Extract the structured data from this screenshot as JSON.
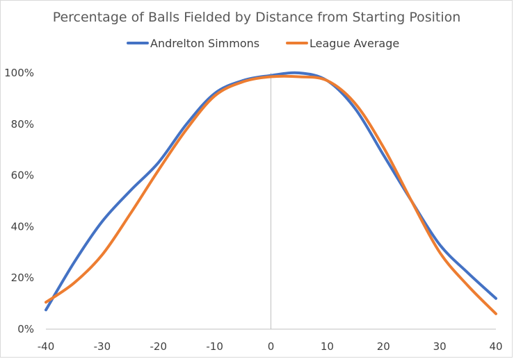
{
  "chart_data": {
    "type": "line",
    "title": "Percentage of Balls Fielded by Distance from Starting Position",
    "xlabel": "",
    "ylabel": "",
    "xlim": [
      -40,
      40
    ],
    "ylim": [
      0,
      100
    ],
    "x_ticks": [
      -40,
      -30,
      -20,
      -10,
      0,
      10,
      20,
      30,
      40
    ],
    "y_ticks": [
      0,
      20,
      40,
      60,
      80,
      100
    ],
    "y_tick_labels": [
      "0%",
      "20%",
      "40%",
      "60%",
      "80%",
      "100%"
    ],
    "legend_position": "top",
    "grid": false,
    "series": [
      {
        "name": "Andrelton Simmons",
        "color": "#4472C4",
        "x": [
          -40,
          -35,
          -30,
          -25,
          -20,
          -15,
          -10,
          -5,
          0,
          5,
          10,
          15,
          20,
          25,
          30,
          35,
          40
        ],
        "values": [
          7.5,
          26,
          42,
          54,
          65,
          80,
          92,
          97,
          99,
          100,
          97,
          86,
          68,
          50,
          33,
          22,
          12
        ]
      },
      {
        "name": "League Average",
        "color": "#ED7D31",
        "x": [
          -40,
          -35,
          -30,
          -25,
          -20,
          -15,
          -10,
          -5,
          0,
          5,
          10,
          15,
          20,
          25,
          30,
          35,
          40
        ],
        "values": [
          10.5,
          18,
          29,
          45,
          62,
          78,
          91,
          96.5,
          98.5,
          98.5,
          97,
          88,
          71,
          50,
          30,
          17,
          6
        ]
      }
    ]
  }
}
